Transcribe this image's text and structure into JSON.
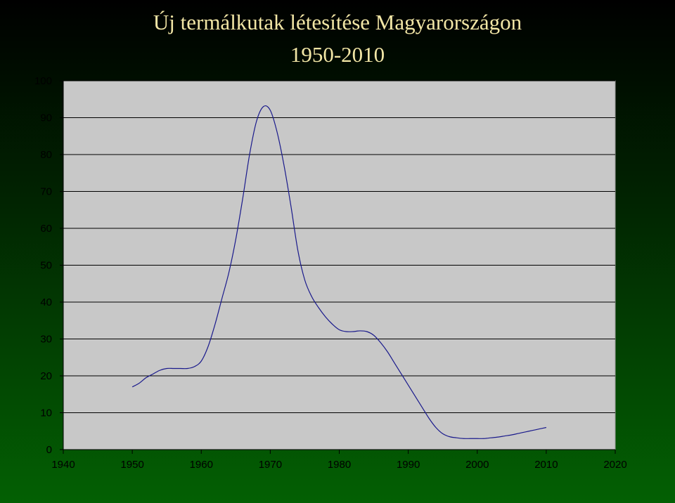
{
  "chart_data": {
    "type": "line",
    "title": "Új termálkutak létesítése Magyarországon",
    "subtitle": "1950-2010",
    "xlabel": "",
    "ylabel": "",
    "xlim": [
      1940,
      2020
    ],
    "ylim": [
      0,
      100
    ],
    "x_ticks": [
      "1940",
      "1950",
      "1960",
      "1970",
      "1980",
      "1990",
      "2000",
      "2010",
      "2020"
    ],
    "y_ticks": [
      "0",
      "10",
      "20",
      "30",
      "40",
      "50",
      "60",
      "70",
      "80",
      "90",
      "100"
    ],
    "grid": true,
    "legend": "none",
    "colors": {
      "line": "#1a1a8c",
      "plot_bg": "#c8c8c8",
      "title": "#f2e6a6"
    },
    "series": [
      {
        "x": [
          1950,
          1951,
          1952,
          1953,
          1954,
          1955,
          1956,
          1957,
          1958,
          1959,
          1960,
          1961,
          1962,
          1963,
          1964,
          1965,
          1966,
          1967,
          1968,
          1969,
          1970,
          1971,
          1972,
          1973,
          1974,
          1975,
          1976,
          1977,
          1978,
          1979,
          1980,
          1981,
          1982,
          1983,
          1984,
          1985,
          1986,
          1987,
          1988,
          1989,
          1990,
          1991,
          1992,
          1993,
          1994,
          1995,
          1996,
          1997,
          1998,
          1999,
          2000,
          2001,
          2002,
          2003,
          2004,
          2005,
          2006,
          2007,
          2008,
          2009,
          2010
        ],
        "y": [
          17,
          18,
          19.5,
          20.5,
          21.5,
          22,
          22,
          22,
          22,
          22.5,
          24,
          28,
          34,
          41,
          48,
          57,
          68,
          80,
          89,
          93,
          92,
          86,
          77,
          66,
          54,
          46,
          41.5,
          38.5,
          36,
          34,
          32.5,
          32,
          32,
          32.2,
          32,
          31,
          29,
          26.5,
          23.5,
          20.5,
          17.5,
          14.5,
          11.5,
          8.5,
          6,
          4.3,
          3.5,
          3.2,
          3,
          3,
          3,
          3,
          3.2,
          3.4,
          3.7,
          4,
          4.4,
          4.8,
          5.2,
          5.6,
          6
        ]
      }
    ]
  }
}
